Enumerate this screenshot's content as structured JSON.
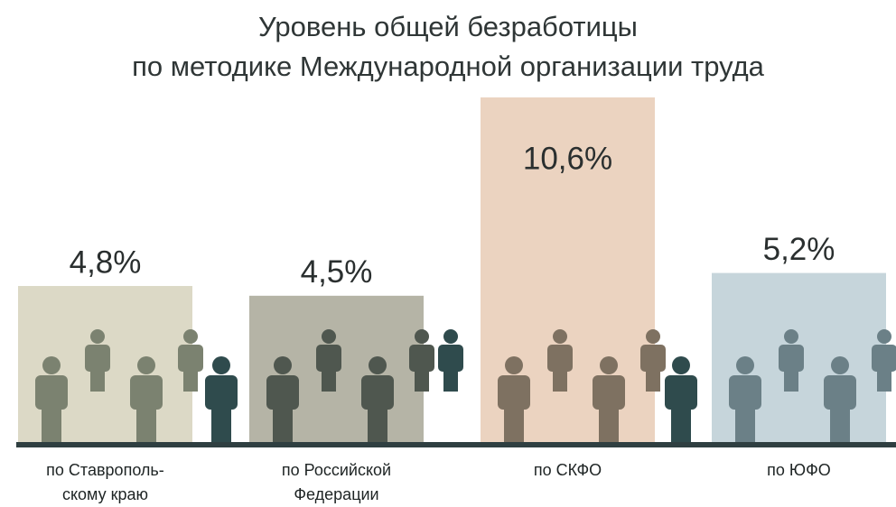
{
  "chart_data": {
    "type": "bar",
    "title": "Уровень общей безработицы\nпо методике Международной организации труда",
    "categories": [
      "по Ставрополь-\nскому краю",
      "по Российской\nФедерации",
      "по СКФО",
      "по ЮФО"
    ],
    "values": [
      4.8,
      4.5,
      10.6,
      5.2
    ],
    "value_labels": [
      "4,8%",
      "4,5%",
      "10,6%",
      "5,2%"
    ],
    "colors": [
      "#dcd9c6",
      "#b5b4a6",
      "#ebd3c0",
      "#c6d5db"
    ]
  }
}
